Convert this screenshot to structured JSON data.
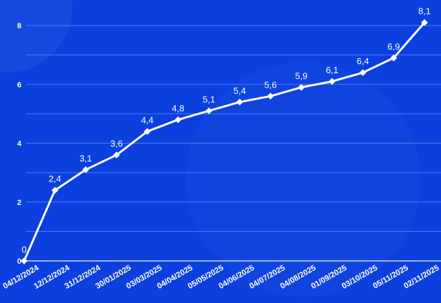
{
  "chart_data": {
    "type": "line",
    "categories": [
      "04/12/2024",
      "12/12/2024",
      "31/12/2024",
      "30/01/2025",
      "03/03/2025",
      "04/04/2025",
      "05/05/2025",
      "04/06/2025",
      "04/07/2025",
      "04/08/2025",
      "01/09/2025",
      "03/10/2025",
      "05/11/2025",
      "02/11/2025"
    ],
    "values": [
      0,
      2.4,
      3.1,
      3.6,
      4.4,
      4.8,
      5.1,
      5.4,
      5.6,
      5.9,
      6.1,
      6.4,
      6.9,
      8.1
    ],
    "data_labels": [
      "0",
      "2,4",
      "3,1",
      "3,6",
      "4,4",
      "4,8",
      "5,1",
      "5,4",
      "5,6",
      "5,9",
      "6,1",
      "6,4",
      "6,9",
      "8,1"
    ],
    "yticks": [
      "0",
      "2",
      "4",
      "6",
      "8"
    ],
    "ylim": [
      0,
      8
    ],
    "grid": true,
    "colors": {
      "background": "#0b40df",
      "line": "#ffffff",
      "grid": "#4f7cf2"
    }
  }
}
